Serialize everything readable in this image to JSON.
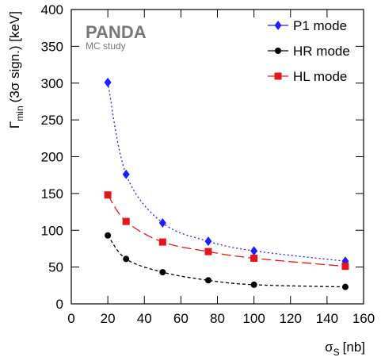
{
  "chart_data": {
    "type": "line",
    "y_label": {
      "symbol": "Γ",
      "subscript": "min",
      "text": "(3σ sign.) [keV]"
    },
    "x_label": {
      "symbol": "σ",
      "subscript": "S",
      "text": "[nb]"
    },
    "annotations": [
      "PANDA",
      "MC study"
    ],
    "x": [
      20,
      30,
      50,
      75,
      100,
      150
    ],
    "series": [
      {
        "name": "P1 mode",
        "color": "#1f1fff",
        "marker": "diamond",
        "dash": "2 3",
        "values": [
          301,
          176,
          110,
          85,
          72,
          58
        ]
      },
      {
        "name": "HR mode",
        "color": "#000000",
        "marker": "circle",
        "dash": "4 3",
        "values": [
          93,
          61,
          43,
          32,
          26,
          23
        ]
      },
      {
        "name": "HL mode",
        "color": "#e8141c",
        "marker": "square",
        "dash": "12 5",
        "values": [
          148,
          112,
          84,
          71,
          62,
          51
        ]
      }
    ],
    "xlim": [
      0,
      160
    ],
    "xticks": [
      0,
      20,
      40,
      60,
      80,
      100,
      120,
      140,
      160
    ],
    "ylim": [
      0,
      400
    ],
    "yticks": [
      0,
      50,
      100,
      150,
      200,
      250,
      300,
      350,
      400
    ],
    "legend": "top-right"
  }
}
